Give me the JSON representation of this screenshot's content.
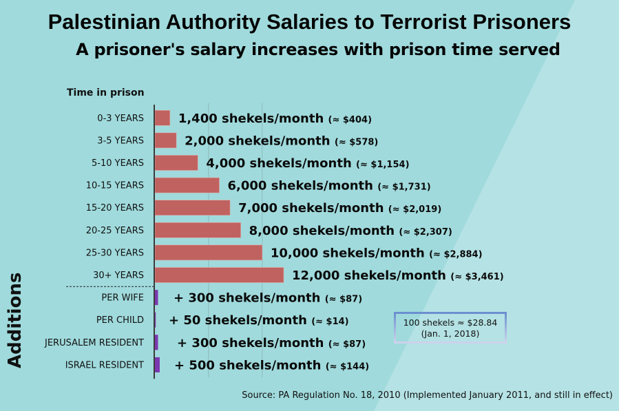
{
  "colors": {
    "background_dark": "#a0dadc",
    "background_light": "#b5e2e4",
    "bar_salary": "#c06260",
    "bar_addition": "#7b38b0",
    "axis": "#3a3a3a",
    "gridline": "#8fb9bb"
  },
  "header": {
    "title": "Palestinian Authority Salaries to Terrorist Prisoners",
    "subtitle": "A prisoner's salary increases with prison time served"
  },
  "axis_heading": "Time in prison",
  "additions_label": "Additions",
  "note": {
    "line1": "100 shekels ≈ $28.84",
    "line2": "(Jan. 1, 2018)"
  },
  "source": "Source: PA Regulation No. 18, 2010 (Implemented January 2011, and still in effect)",
  "chart_data": {
    "type": "bar",
    "orientation": "horizontal",
    "title": "Palestinian Authority Salaries to Terrorist Prisoners",
    "subtitle": "A prisoner's salary increases with prison time served",
    "ylabel": "Time in prison",
    "xlabel": "",
    "xlim": [
      0,
      12000
    ],
    "gridlines_x": [
      5000,
      10000
    ],
    "grid": true,
    "unit": "shekels/month",
    "categories": [
      "0-3 YEARS",
      "3-5 YEARS",
      "5-10 YEARS",
      "10-15 YEARS",
      "15-20 YEARS",
      "20-25 YEARS",
      "25-30 YEARS",
      "30+ YEARS"
    ],
    "values": [
      1400,
      2000,
      4000,
      6000,
      7000,
      8000,
      10000,
      12000
    ],
    "labels": [
      {
        "main": "1,400 shekels/month",
        "usd": "(≈ $404)"
      },
      {
        "main": "2,000 shekels/month",
        "usd": "(≈ $578)"
      },
      {
        "main": "4,000 shekels/month",
        "usd": "(≈ $1,154)"
      },
      {
        "main": "6,000 shekels/month",
        "usd": "(≈ $1,731)"
      },
      {
        "main": "7,000 shekels/month",
        "usd": "(≈ $2,019)"
      },
      {
        "main": "8,000 shekels/month",
        "usd": "(≈ $2,307)"
      },
      {
        "main": "10,000 shekels/month",
        "usd": "(≈ $2,884)"
      },
      {
        "main": "12,000 shekels/month",
        "usd": "(≈ $3,461)"
      }
    ],
    "additions": {
      "group_label": "Additions",
      "categories": [
        "PER WIFE",
        "PER CHILD",
        "JERUSALEM RESIDENT",
        "ISRAEL RESIDENT"
      ],
      "values": [
        300,
        50,
        300,
        500
      ],
      "labels": [
        {
          "main": "+ 300 shekels/month",
          "usd": "(≈ $87)"
        },
        {
          "main": "+ 50 shekels/month",
          "usd": "(≈ $14)"
        },
        {
          "main": "+ 300 shekels/month",
          "usd": "(≈ $87)"
        },
        {
          "main": "+ 500 shekels/month",
          "usd": "(≈ $144)"
        }
      ]
    },
    "annotation": "100 shekels ≈ $28.84 (Jan. 1, 2018)",
    "source": "Source: PA Regulation No. 18, 2010 (Implemented January 2011, and still in effect)"
  }
}
